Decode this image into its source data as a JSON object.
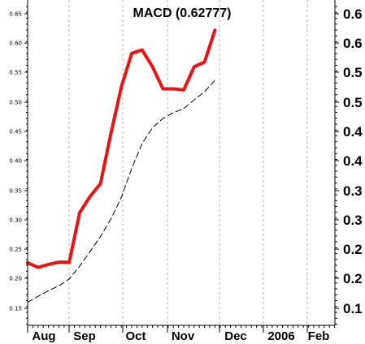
{
  "chart_data": {
    "type": "line",
    "title": "MACD (0.62777)",
    "x_labels": [
      "Aug",
      "Sep",
      "Oct",
      "Nov",
      "Dec",
      "2006",
      "Feb"
    ],
    "left_ticks": [
      "0.65",
      "0.60",
      "0.55",
      "0.50",
      "0.45",
      "0.40",
      "0.35",
      "0.30",
      "0.25",
      "0.20",
      "0.15"
    ],
    "right_ticks": [
      "0.6",
      "0.6",
      "0.5",
      "0.5",
      "0.4",
      "0.4",
      "0.3",
      "0.3",
      "0.2",
      "0.2",
      "0.1"
    ],
    "ylim": [
      0.13,
      0.67
    ],
    "grid_x": true,
    "series": [
      {
        "color": "#ee1111",
        "style": "solid",
        "values": [
          0.228,
          0.22,
          0.225,
          0.229,
          0.229,
          0.314,
          0.342,
          0.364,
          0.45,
          0.53,
          0.588,
          0.594,
          0.565,
          0.527,
          0.527,
          0.525,
          0.565,
          0.573,
          0.628
        ]
      },
      {
        "color": "#000000",
        "style": "dashed",
        "values": [
          0.16,
          0.17,
          0.18,
          0.188,
          0.2,
          0.222,
          0.247,
          0.273,
          0.303,
          0.34,
          0.39,
          0.433,
          0.46,
          0.476,
          0.486,
          0.493,
          0.508,
          0.522,
          0.542
        ]
      }
    ]
  }
}
